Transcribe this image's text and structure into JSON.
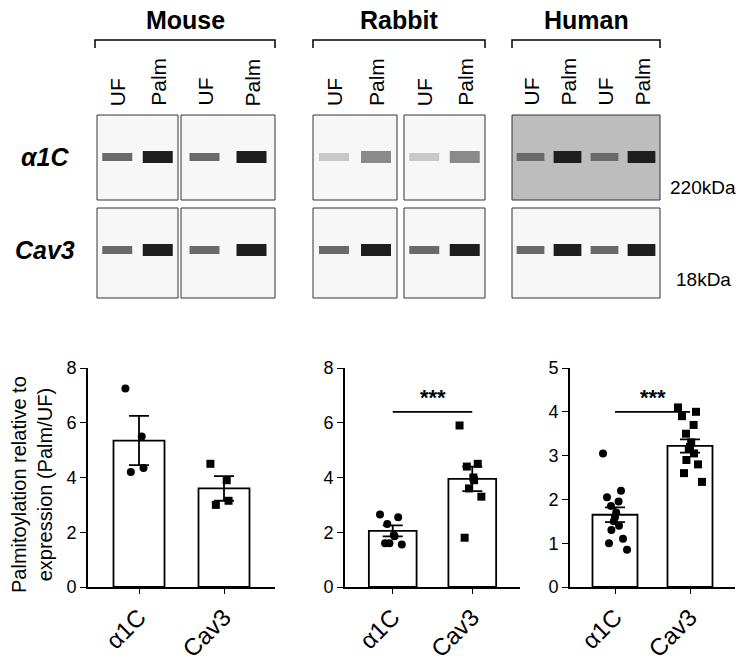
{
  "blot": {
    "species": [
      {
        "name": "Mouse",
        "panels": [
          [
            "UF",
            "Palm"
          ],
          [
            "UF",
            "Palm"
          ]
        ]
      },
      {
        "name": "Rabbit",
        "panels": [
          [
            "UF",
            "Palm"
          ],
          [
            "UF",
            "Palm"
          ]
        ]
      },
      {
        "name": "Human",
        "panels": [
          [
            "UF",
            "Palm",
            "UF",
            "Palm"
          ]
        ]
      }
    ],
    "rows": [
      {
        "label": "α1C",
        "size": "220kDa"
      },
      {
        "label": "Cav3",
        "size": "18kDa"
      }
    ]
  },
  "chart_data": [
    {
      "type": "bar",
      "y_label": "Palmitoylation relative to expression (Palm/UF)",
      "categories": [
        "α1C",
        "Cav3"
      ],
      "values": [
        5.35,
        3.6
      ],
      "errors": [
        0.9,
        0.45
      ],
      "color": "#ffffff",
      "points": [
        {
          "category": "α1C",
          "marker": "circle",
          "color": "#000000",
          "values": [
            7.25,
            5.5,
            4.35,
            4.2
          ]
        },
        {
          "category": "Cav3",
          "marker": "square",
          "color": "#000000",
          "values": [
            4.5,
            3.9,
            3.15,
            3.0
          ]
        }
      ],
      "ylim": [
        0,
        8
      ],
      "yticks": [
        0,
        2,
        4,
        6,
        8
      ],
      "grid": false
    },
    {
      "type": "bar",
      "categories": [
        "α1C",
        "Cav3"
      ],
      "values": [
        2.05,
        3.95
      ],
      "errors": [
        0.2,
        0.45
      ],
      "color": "#ffffff",
      "points": [
        {
          "category": "α1C",
          "marker": "circle",
          "color": "#000000",
          "values": [
            2.65,
            2.55,
            2.3,
            1.9,
            1.85,
            1.6,
            1.55,
            1.6
          ]
        },
        {
          "category": "Cav3",
          "marker": "square",
          "color": "#000000",
          "values": [
            5.9,
            4.5,
            4.4,
            4.0,
            3.9,
            3.6,
            3.3,
            1.8
          ]
        }
      ],
      "annotation": "***",
      "ylim": [
        0,
        8
      ],
      "yticks": [
        0,
        2,
        4,
        6,
        8
      ],
      "grid": false
    },
    {
      "type": "bar",
      "categories": [
        "α1C",
        "Cav3"
      ],
      "values": [
        1.65,
        3.22
      ],
      "errors": [
        0.17,
        0.15
      ],
      "color": "#ffffff",
      "points": [
        {
          "category": "α1C",
          "marker": "circle",
          "color": "#000000",
          "values": [
            3.05,
            2.2,
            2.05,
            1.95,
            1.85,
            1.7,
            1.6,
            1.5,
            1.4,
            1.3,
            1.1,
            1.0,
            0.85
          ]
        },
        {
          "category": "Cav3",
          "marker": "square",
          "color": "#000000",
          "values": [
            4.1,
            4.0,
            3.9,
            3.7,
            3.5,
            3.3,
            3.2,
            3.15,
            3.05,
            2.9,
            2.8,
            2.6,
            2.4
          ]
        }
      ],
      "annotation": "***",
      "ylim": [
        0,
        5
      ],
      "yticks": [
        0,
        1,
        2,
        3,
        4,
        5
      ],
      "grid": false
    }
  ]
}
